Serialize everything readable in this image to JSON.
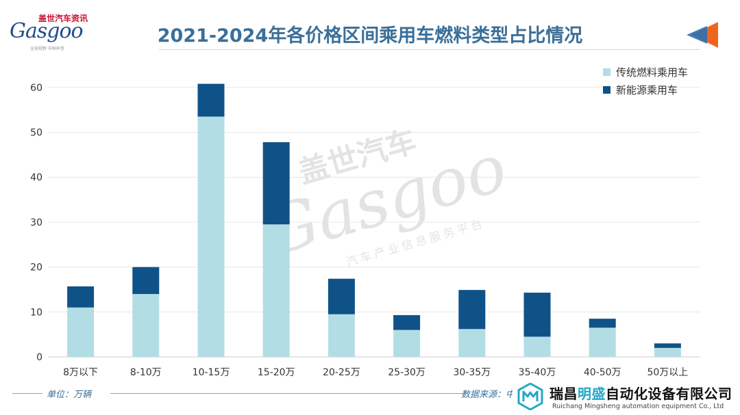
{
  "header": {
    "logo_cn": "盖世汽车资讯",
    "logo_en": "Gasgoo",
    "logo_sub": "全球视野 中国声音",
    "title": "2021-2024年各价格区间乘用车燃料类型占比情况"
  },
  "watermark": {
    "cn": "盖世汽车",
    "en": "Gasgoo",
    "sub": "汽车产业信息服务平台"
  },
  "footer": {
    "unit": "单位：万辆",
    "source": "数据来源：中"
  },
  "company": {
    "name_part1": "瑞昌",
    "name_highlight": "明盛",
    "name_part2": "自动化设备有限公司",
    "name_en": "Ruichang Mingsheng automation equipment Co., Ltd"
  },
  "colors": {
    "traditional": "#b3dde5",
    "nev": "#0f5288",
    "title": "#3a6f99",
    "accent_orange": "#f0641e",
    "accent_blue": "#2e6fb0"
  },
  "chart_data": {
    "type": "bar",
    "stacked": true,
    "title": "2021-2024年各价格区间乘用车燃料类型占比情况",
    "xlabel": "",
    "ylabel": "",
    "unit": "单位：万辆",
    "ylim": [
      0,
      65
    ],
    "yticks": [
      0,
      10,
      20,
      30,
      40,
      50,
      60
    ],
    "grid": true,
    "legend_position": "top-right",
    "categories": [
      "8万以下",
      "8-10万",
      "10-15万",
      "15-20万",
      "20-25万",
      "25-30万",
      "30-35万",
      "35-40万",
      "40-50万",
      "50万以上"
    ],
    "series": [
      {
        "name": "传统燃料乘用车",
        "color": "#b3dde5",
        "values": [
          11,
          14,
          53.5,
          29.5,
          9.5,
          6,
          6.2,
          4.5,
          6.5,
          2
        ]
      },
      {
        "name": "新能源乘用车",
        "color": "#0f5288",
        "values": [
          4.7,
          6,
          7.3,
          18.3,
          7.9,
          3.3,
          8.7,
          9.8,
          2,
          1
        ]
      }
    ]
  }
}
